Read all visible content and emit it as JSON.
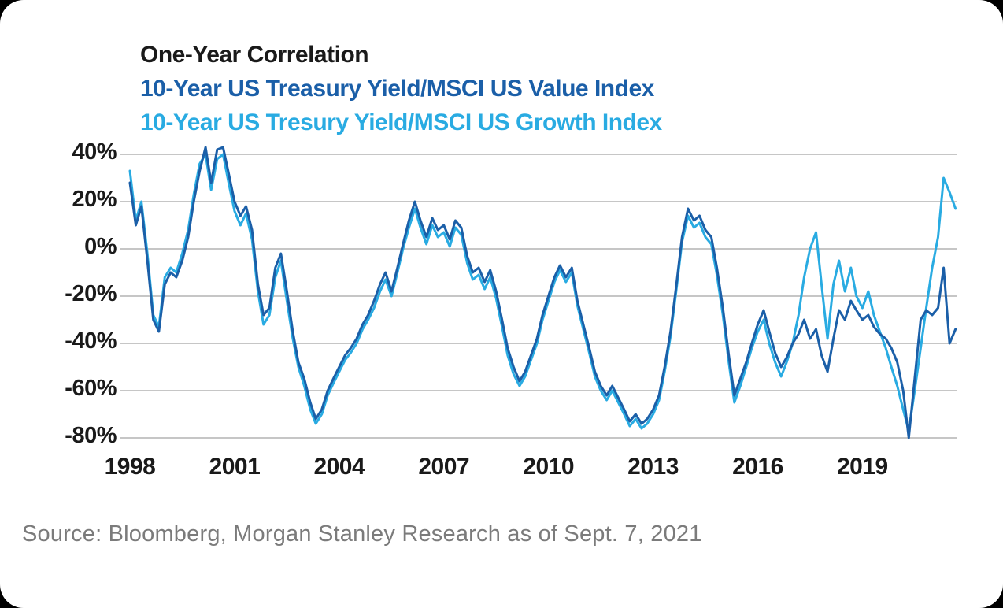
{
  "page": {
    "background_color": "#000000",
    "card_background_color": "#ffffff"
  },
  "chart": {
    "title": "One-Year Correlation",
    "legend": [
      {
        "label": "10-Year US Treasury Yield/MSCI US Value Index",
        "color": "#1b5fa8"
      },
      {
        "label": "10-Year US Tresury Yield/MSCI US Growth Index",
        "color": "#29abe2"
      }
    ]
  },
  "source_text": "Source: Bloomberg, Morgan Stanley Research as of Sept. 7, 2021",
  "chart_data": {
    "type": "line",
    "title": "One-Year Correlation",
    "xlabel": "",
    "ylabel": "",
    "ylim": [
      -80,
      40
    ],
    "xlim": [
      1998,
      2021.7
    ],
    "grid": "horizontal",
    "grid_color": "#c6c6c6",
    "legend_position": "top-left-as-colored-title-lines",
    "y_ticks": [
      40,
      20,
      0,
      -20,
      -40,
      -60,
      -80
    ],
    "y_tick_labels": [
      "40%",
      "20%",
      "0%",
      "-20%",
      "-40%",
      "-60%",
      "-80%"
    ],
    "x_ticks": [
      1998,
      2001,
      2004,
      2007,
      2010,
      2013,
      2016,
      2019
    ],
    "x_tick_labels": [
      "1998",
      "2001",
      "2004",
      "2007",
      "2010",
      "2013",
      "2016",
      "2019"
    ],
    "x": [
      1998,
      1998.17,
      1998.33,
      1998.5,
      1998.67,
      1998.83,
      1999,
      1999.17,
      1999.33,
      1999.5,
      1999.67,
      1999.83,
      2000,
      2000.17,
      2000.33,
      2000.5,
      2000.67,
      2000.83,
      2001,
      2001.17,
      2001.33,
      2001.5,
      2001.67,
      2001.83,
      2002,
      2002.17,
      2002.33,
      2002.5,
      2002.67,
      2002.83,
      2003,
      2003.17,
      2003.33,
      2003.5,
      2003.67,
      2003.83,
      2004,
      2004.17,
      2004.33,
      2004.5,
      2004.67,
      2004.83,
      2005,
      2005.17,
      2005.33,
      2005.5,
      2005.67,
      2005.83,
      2006,
      2006.17,
      2006.33,
      2006.5,
      2006.67,
      2006.83,
      2007,
      2007.17,
      2007.33,
      2007.5,
      2007.67,
      2007.83,
      2008,
      2008.17,
      2008.33,
      2008.5,
      2008.67,
      2008.83,
      2009,
      2009.17,
      2009.33,
      2009.5,
      2009.67,
      2009.83,
      2010,
      2010.17,
      2010.33,
      2010.5,
      2010.67,
      2010.83,
      2011,
      2011.17,
      2011.33,
      2011.5,
      2011.67,
      2011.83,
      2012,
      2012.17,
      2012.33,
      2012.5,
      2012.67,
      2012.83,
      2013,
      2013.17,
      2013.33,
      2013.5,
      2013.67,
      2013.83,
      2014,
      2014.17,
      2014.33,
      2014.5,
      2014.67,
      2014.83,
      2015,
      2015.17,
      2015.33,
      2015.5,
      2015.67,
      2015.83,
      2016,
      2016.17,
      2016.33,
      2016.5,
      2016.67,
      2016.83,
      2017,
      2017.17,
      2017.33,
      2017.5,
      2017.67,
      2017.83,
      2018,
      2018.17,
      2018.33,
      2018.5,
      2018.67,
      2018.83,
      2019,
      2019.17,
      2019.33,
      2019.5,
      2019.67,
      2019.83,
      2020,
      2020.17,
      2020.33,
      2020.5,
      2020.67,
      2020.83,
      2021,
      2021.17,
      2021.33,
      2021.5,
      2021.67
    ],
    "series": [
      {
        "name": "10-Year US Treasury Yield/MSCI US Value Index",
        "color": "#1b5fa8",
        "values": [
          28,
          10,
          18,
          -5,
          -30,
          -35,
          -15,
          -10,
          -12,
          -5,
          5,
          20,
          33,
          43,
          28,
          42,
          43,
          32,
          20,
          14,
          18,
          8,
          -15,
          -28,
          -25,
          -8,
          -2,
          -18,
          -35,
          -48,
          -55,
          -65,
          -72,
          -68,
          -60,
          -55,
          -50,
          -45,
          -42,
          -38,
          -32,
          -28,
          -22,
          -15,
          -10,
          -18,
          -8,
          2,
          12,
          20,
          12,
          5,
          13,
          8,
          10,
          4,
          12,
          9,
          -3,
          -10,
          -8,
          -14,
          -9,
          -18,
          -30,
          -42,
          -50,
          -56,
          -52,
          -45,
          -38,
          -28,
          -20,
          -12,
          -7,
          -12,
          -8,
          -22,
          -32,
          -42,
          -52,
          -58,
          -62,
          -58,
          -63,
          -68,
          -73,
          -70,
          -74,
          -72,
          -68,
          -62,
          -50,
          -35,
          -15,
          5,
          17,
          12,
          14,
          8,
          5,
          -8,
          -25,
          -45,
          -62,
          -55,
          -48,
          -40,
          -32,
          -26,
          -35,
          -44,
          -50,
          -46,
          -40,
          -36,
          -30,
          -38,
          -34,
          -45,
          -52,
          -38,
          -26,
          -30,
          -22,
          -26,
          -30,
          -28,
          -33,
          -36,
          -38,
          -42,
          -48,
          -60,
          -80,
          -55,
          -30,
          -26,
          -28,
          -25,
          -8,
          -40,
          -34
        ]
      },
      {
        "name": "10-Year US Tresury Yield/MSCI US Growth Index",
        "color": "#29abe2",
        "values": [
          33,
          12,
          20,
          -2,
          -28,
          -33,
          -12,
          -8,
          -10,
          -2,
          8,
          23,
          36,
          40,
          25,
          38,
          40,
          28,
          16,
          10,
          15,
          4,
          -18,
          -32,
          -28,
          -12,
          -5,
          -22,
          -38,
          -50,
          -58,
          -68,
          -74,
          -70,
          -62,
          -57,
          -52,
          -47,
          -44,
          -40,
          -34,
          -30,
          -25,
          -18,
          -13,
          -20,
          -10,
          0,
          9,
          17,
          9,
          2,
          10,
          5,
          7,
          1,
          9,
          6,
          -6,
          -13,
          -11,
          -17,
          -12,
          -21,
          -33,
          -45,
          -53,
          -58,
          -54,
          -47,
          -40,
          -30,
          -22,
          -14,
          -9,
          -14,
          -10,
          -24,
          -34,
          -44,
          -54,
          -60,
          -64,
          -60,
          -65,
          -70,
          -75,
          -72,
          -76,
          -74,
          -70,
          -64,
          -52,
          -37,
          -17,
          3,
          14,
          9,
          11,
          5,
          2,
          -11,
          -28,
          -48,
          -65,
          -58,
          -50,
          -42,
          -35,
          -30,
          -40,
          -48,
          -54,
          -48,
          -40,
          -28,
          -12,
          0,
          7,
          -15,
          -38,
          -15,
          -5,
          -18,
          -8,
          -20,
          -25,
          -18,
          -28,
          -35,
          -42,
          -50,
          -58,
          -68,
          -77,
          -60,
          -42,
          -25,
          -8,
          5,
          30,
          24,
          17
        ]
      }
    ]
  }
}
